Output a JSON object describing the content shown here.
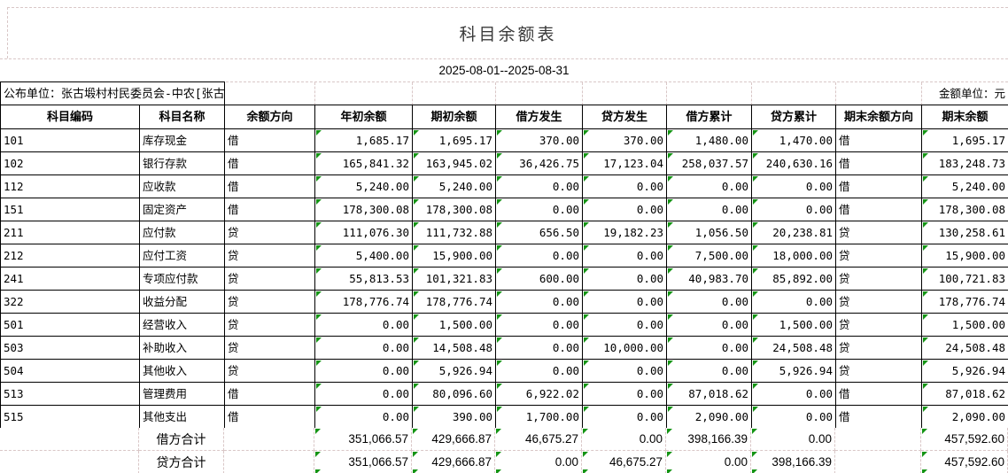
{
  "title": "科目余额表",
  "period": "2025-08-01--2025-08-31",
  "publisher_label": "公布单位：张古塅村村民委员会-中农[张古",
  "unit_label": "金额单位：元",
  "colors": {
    "indicator_green": "#149414",
    "dashed_gridline": "#d9c7c7"
  },
  "table": {
    "headers": [
      "科目编码",
      "科目名称",
      "余额方向",
      "年初余额",
      "期初余额",
      "借方发生",
      "贷方发生",
      "借方累计",
      "贷方累计",
      "期末余额方向",
      "期末余额"
    ],
    "column_keys": [
      "subject-code",
      "subject-name",
      "balance-direction",
      "year-opening-balance",
      "period-opening-balance",
      "debit-occurred",
      "credit-occurred",
      "debit-cumulative",
      "credit-cumulative",
      "ending-balance-direction",
      "ending-balance"
    ],
    "indicator_columns": [
      3,
      4,
      5,
      6,
      7,
      8,
      10
    ],
    "rows": [
      [
        "101",
        "库存现金",
        "借",
        "1,685.17",
        "1,695.17",
        "370.00",
        "370.00",
        "1,480.00",
        "1,470.00",
        "借",
        "1,695.17"
      ],
      [
        "102",
        "银行存款",
        "借",
        "165,841.32",
        "163,945.02",
        "36,426.75",
        "17,123.04",
        "258,037.57",
        "240,630.16",
        "借",
        "183,248.73"
      ],
      [
        "112",
        "应收款",
        "借",
        "5,240.00",
        "5,240.00",
        "0.00",
        "0.00",
        "0.00",
        "0.00",
        "借",
        "5,240.00"
      ],
      [
        "151",
        "固定资产",
        "借",
        "178,300.08",
        "178,300.08",
        "0.00",
        "0.00",
        "0.00",
        "0.00",
        "借",
        "178,300.08"
      ],
      [
        "211",
        "应付款",
        "贷",
        "111,076.30",
        "111,732.88",
        "656.50",
        "19,182.23",
        "1,056.50",
        "20,238.81",
        "贷",
        "130,258.61"
      ],
      [
        "212",
        "应付工资",
        "贷",
        "5,400.00",
        "15,900.00",
        "0.00",
        "0.00",
        "7,500.00",
        "18,000.00",
        "贷",
        "15,900.00"
      ],
      [
        "241",
        "专项应付款",
        "贷",
        "55,813.53",
        "101,321.83",
        "600.00",
        "0.00",
        "40,983.70",
        "85,892.00",
        "贷",
        "100,721.83"
      ],
      [
        "322",
        "收益分配",
        "贷",
        "178,776.74",
        "178,776.74",
        "0.00",
        "0.00",
        "0.00",
        "0.00",
        "贷",
        "178,776.74"
      ],
      [
        "501",
        "经营收入",
        "贷",
        "0.00",
        "1,500.00",
        "0.00",
        "0.00",
        "0.00",
        "1,500.00",
        "贷",
        "1,500.00"
      ],
      [
        "503",
        "补助收入",
        "贷",
        "0.00",
        "14,508.48",
        "0.00",
        "10,000.00",
        "0.00",
        "24,508.48",
        "贷",
        "24,508.48"
      ],
      [
        "504",
        "其他收入",
        "贷",
        "0.00",
        "5,926.94",
        "0.00",
        "0.00",
        "0.00",
        "5,926.94",
        "贷",
        "5,926.94"
      ],
      [
        "513",
        "管理费用",
        "借",
        "0.00",
        "80,096.60",
        "6,922.02",
        "0.00",
        "87,018.62",
        "0.00",
        "借",
        "87,018.62"
      ],
      [
        "515",
        "其他支出",
        "借",
        "0.00",
        "390.00",
        "1,700.00",
        "0.00",
        "2,090.00",
        "0.00",
        "借",
        "2,090.00"
      ]
    ],
    "totals": [
      [
        "",
        "借方合计",
        "",
        "351,066.57",
        "429,666.87",
        "46,675.27",
        "0.00",
        "398,166.39",
        "0.00",
        "",
        "457,592.60"
      ],
      [
        "",
        "贷方合计",
        "",
        "351,066.57",
        "429,666.87",
        "0.00",
        "46,675.27",
        "0.00",
        "398,166.39",
        "",
        "457,592.60"
      ]
    ]
  }
}
